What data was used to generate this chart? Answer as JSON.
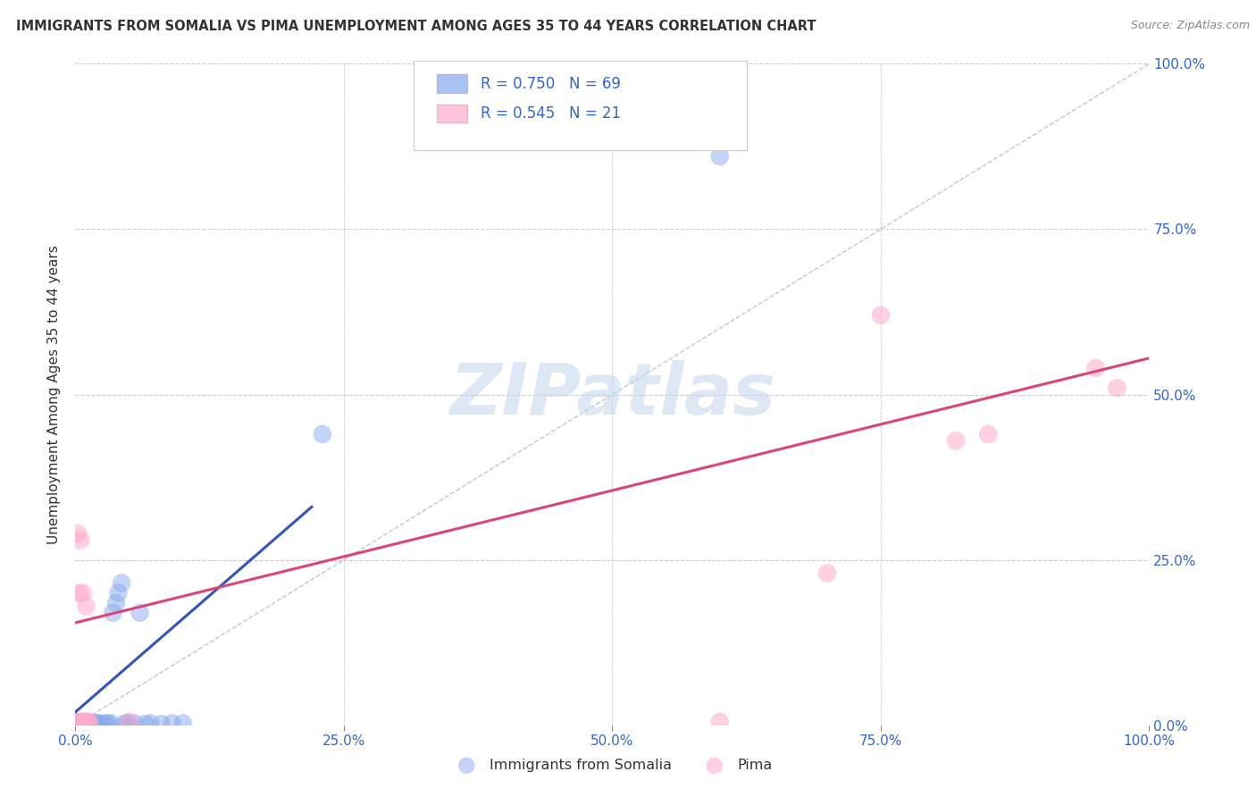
{
  "title": "IMMIGRANTS FROM SOMALIA VS PIMA UNEMPLOYMENT AMONG AGES 35 TO 44 YEARS CORRELATION CHART",
  "source": "Source: ZipAtlas.com",
  "ylabel": "Unemployment Among Ages 35 to 44 years",
  "xlim": [
    0,
    1
  ],
  "ylim": [
    0,
    1
  ],
  "xtick_labels": [
    "0.0%",
    "25.0%",
    "50.0%",
    "75.0%",
    "100.0%"
  ],
  "xtick_positions": [
    0,
    0.25,
    0.5,
    0.75,
    1.0
  ],
  "ytick_labels": [
    "0.0%",
    "25.0%",
    "50.0%",
    "75.0%",
    "100.0%"
  ],
  "ytick_positions": [
    0,
    0.25,
    0.5,
    0.75,
    1.0
  ],
  "somalia_color": "#88aaee",
  "pima_color": "#ffaacc",
  "somalia_trendline_color": "#3355bb",
  "pima_trendline_color": "#dd4477",
  "somalia_R": 0.75,
  "somalia_N": 69,
  "pima_R": 0.545,
  "pima_N": 21,
  "legend_color": "#3366cc",
  "watermark_text": "ZIPatlas",
  "watermark_color": "#c8d8ee",
  "background_color": "#ffffff",
  "grid_color": "#cccccc",
  "grid_style": "--",
  "somalia_scatter_x": [
    0.001,
    0.001,
    0.002,
    0.002,
    0.002,
    0.002,
    0.002,
    0.002,
    0.002,
    0.003,
    0.003,
    0.003,
    0.003,
    0.003,
    0.003,
    0.003,
    0.004,
    0.004,
    0.004,
    0.004,
    0.005,
    0.005,
    0.005,
    0.005,
    0.006,
    0.006,
    0.006,
    0.006,
    0.007,
    0.007,
    0.007,
    0.008,
    0.008,
    0.008,
    0.009,
    0.009,
    0.01,
    0.01,
    0.011,
    0.012,
    0.013,
    0.014,
    0.015,
    0.016,
    0.017,
    0.018,
    0.019,
    0.02,
    0.022,
    0.025,
    0.028,
    0.03,
    0.033,
    0.035,
    0.038,
    0.04,
    0.043,
    0.045,
    0.048,
    0.05,
    0.055,
    0.06,
    0.065,
    0.07,
    0.08,
    0.09,
    0.1,
    0.23,
    0.6
  ],
  "somalia_scatter_y": [
    0.001,
    0.001,
    0.001,
    0.001,
    0.001,
    0.002,
    0.002,
    0.002,
    0.003,
    0.001,
    0.001,
    0.002,
    0.002,
    0.003,
    0.003,
    0.003,
    0.001,
    0.001,
    0.002,
    0.003,
    0.001,
    0.002,
    0.002,
    0.003,
    0.001,
    0.002,
    0.002,
    0.003,
    0.002,
    0.002,
    0.003,
    0.001,
    0.002,
    0.003,
    0.002,
    0.003,
    0.002,
    0.003,
    0.002,
    0.002,
    0.003,
    0.002,
    0.002,
    0.003,
    0.003,
    0.002,
    0.003,
    0.003,
    0.003,
    0.002,
    0.003,
    0.003,
    0.003,
    0.17,
    0.185,
    0.2,
    0.215,
    0.002,
    0.003,
    0.003,
    0.003,
    0.17,
    0.002,
    0.003,
    0.002,
    0.003,
    0.003,
    0.44,
    0.86
  ],
  "pima_scatter_x": [
    0.002,
    0.003,
    0.003,
    0.004,
    0.005,
    0.006,
    0.007,
    0.008,
    0.009,
    0.01,
    0.011,
    0.012,
    0.013,
    0.05,
    0.6,
    0.7,
    0.75,
    0.82,
    0.85,
    0.95,
    0.97
  ],
  "pima_scatter_y": [
    0.29,
    0.005,
    0.2,
    0.005,
    0.28,
    0.005,
    0.2,
    0.005,
    0.005,
    0.18,
    0.005,
    0.005,
    0.005,
    0.005,
    0.005,
    0.23,
    0.62,
    0.43,
    0.44,
    0.54,
    0.51
  ],
  "somalia_trendline_x": [
    0.0,
    0.22
  ],
  "somalia_trendline_y": [
    0.02,
    0.33
  ],
  "pima_trendline_x": [
    0.0,
    1.0
  ],
  "pima_trendline_y": [
    0.155,
    0.555
  ],
  "ref_line_x": [
    0.0,
    1.0
  ],
  "ref_line_y": [
    0.0,
    1.0
  ],
  "legend_somalia_label": "Immigrants from Somalia",
  "legend_pima_label": "Pima"
}
